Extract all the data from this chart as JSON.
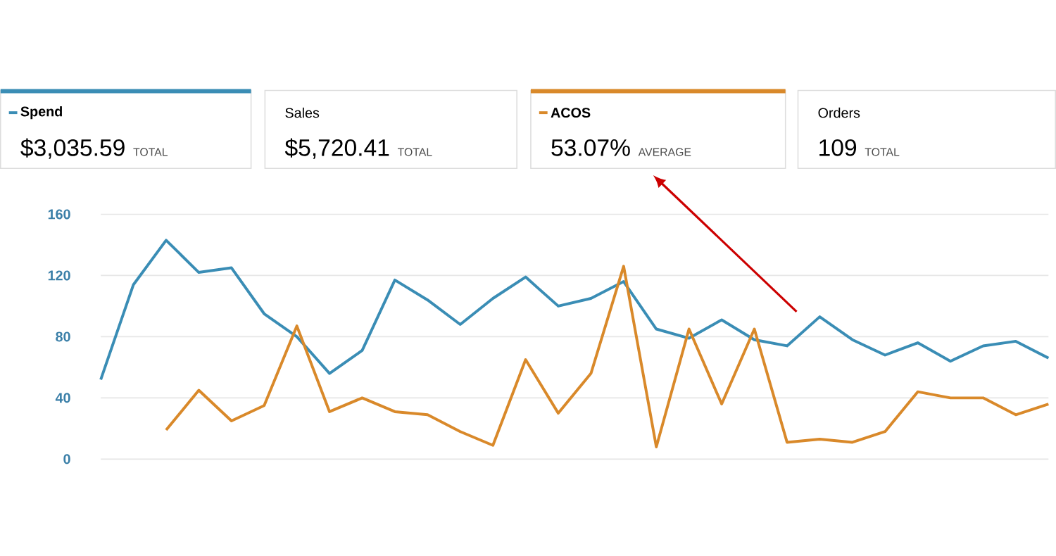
{
  "chart_data": {
    "type": "line",
    "categories": [
      null,
      null,
      null,
      null,
      null,
      null,
      null,
      null,
      null,
      null,
      null,
      null,
      null,
      null,
      null,
      null,
      null,
      null,
      null,
      null,
      null,
      null,
      null,
      null,
      null,
      null,
      null,
      null,
      null,
      null
    ],
    "series": [
      {
        "name": "Spend",
        "color": "#3a8db5",
        "values": [
          52,
          114,
          143,
          122,
          125,
          95,
          80,
          56,
          71,
          117,
          104,
          88,
          105,
          119,
          100,
          105,
          116,
          85,
          79,
          91,
          78,
          74,
          93,
          78,
          68,
          76,
          64,
          74,
          77,
          66
        ]
      },
      {
        "name": "ACOS",
        "color": "#d9892a",
        "values": [
          null,
          null,
          19,
          45,
          25,
          35,
          87,
          31,
          40,
          31,
          29,
          18,
          9,
          65,
          30,
          56,
          126,
          8,
          85,
          36,
          85,
          11,
          13,
          11,
          18,
          44,
          40,
          40,
          29,
          36
        ]
      }
    ],
    "legend": "top",
    "ylim": [
      0,
      160
    ],
    "yticks": [
      0,
      40,
      80,
      120,
      160
    ],
    "grid": "y",
    "annotations": [
      "$3,035.59",
      "TOTAL",
      "Sales",
      "$5,720.41",
      "TOTAL",
      "53.07%",
      "AVERAGE",
      "Orders",
      "109",
      "TOTAL"
    ]
  }
}
